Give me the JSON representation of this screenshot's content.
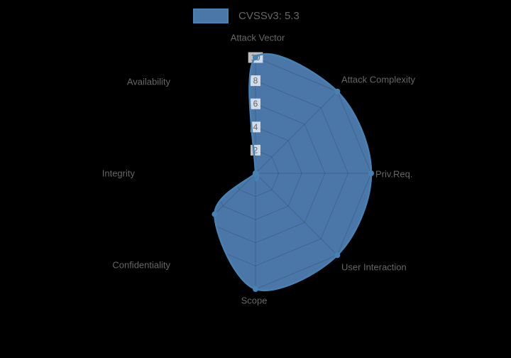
{
  "background": "#000000",
  "legend": {
    "label": "CVSSv3: 5.3",
    "text_color": "#666666"
  },
  "chart_data": {
    "type": "radar",
    "title": "",
    "categories": [
      "Attack Vector",
      "Attack Complexity",
      "Priv.Req.",
      "User Interaction",
      "Scope",
      "Confidentiality",
      "Integrity",
      "Availability"
    ],
    "series": [
      {
        "name": "CVSSv3: 5.3",
        "values": [
          10,
          10,
          10,
          10,
          10,
          5,
          0,
          0
        ]
      }
    ],
    "rlim": [
      0,
      10
    ],
    "radial_ticks": [
      2,
      4,
      6,
      8,
      10
    ],
    "grid": true,
    "smoothing": true,
    "legend_position": "top-center",
    "colors": {
      "fill": "#4b77a8",
      "border": "#4682b4",
      "grid": "rgba(0,0,0,0.13)",
      "tick_text": "#666666",
      "tick_backdrop": "rgba(255,255,255,0.75)",
      "label_text": "#666666"
    }
  }
}
